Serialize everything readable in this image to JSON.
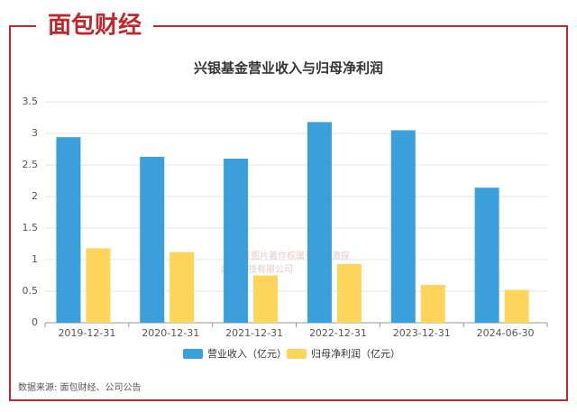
{
  "logo": "面包财经",
  "watermark": [
    "本图表图片著作权属于上海激探",
    "网络科技有限公司"
  ],
  "chart_data": {
    "type": "bar",
    "title": "兴银基金营业收入与归母净利润",
    "categories": [
      "2019-12-31",
      "2020-12-31",
      "2021-12-31",
      "2022-12-31",
      "2023-12-31",
      "2024-06-30"
    ],
    "series": [
      {
        "name": "营业收入（亿元）",
        "color": "#3a9fdb",
        "values": [
          2.94,
          2.63,
          2.6,
          3.18,
          3.05,
          2.14
        ]
      },
      {
        "name": "归母净利润（亿元）",
        "color": "#fcd55a",
        "values": [
          1.18,
          1.12,
          0.75,
          0.93,
          0.6,
          0.52
        ]
      }
    ],
    "ylim": [
      0,
      3.5
    ],
    "yticks": [
      0,
      0.5,
      1,
      1.5,
      2,
      2.5,
      3,
      3.5
    ],
    "grid": true,
    "source": "数据来源: 面包财经、公司公告"
  }
}
